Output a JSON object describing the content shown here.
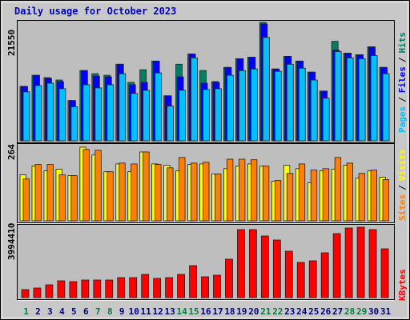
{
  "title": "Daily usage for October 2023",
  "label_separator": "/",
  "chart_data": [
    {
      "type": "bar",
      "ylim": [
        0,
        21550
      ],
      "yticks": [
        21550
      ],
      "series": [
        {
          "name": "Hits",
          "color": "#008060",
          "values": [
            9913,
            11925,
            11494,
            11063,
            7327,
            12787,
            12212,
            11925,
            13936,
            10632,
            12930,
            14511,
            8189,
            13936,
            15804,
            12787,
            10775,
            13361,
            14942,
            15229,
            21550,
            13074,
            15373,
            14511,
            12499,
            9051,
            18102,
            15947,
            15660,
            17097,
            13361
          ]
        },
        {
          "name": "Files",
          "color": "#0000ff",
          "values": [
            9913,
            11925,
            11350,
            10775,
            7327,
            12787,
            11781,
            11637,
            13936,
            10201,
            10632,
            14511,
            8189,
            11637,
            15804,
            10488,
            10632,
            13361,
            14942,
            15229,
            21263,
            13074,
            15373,
            14511,
            12499,
            9051,
            16522,
            15947,
            15660,
            17097,
            13361
          ]
        },
        {
          "name": "Pages",
          "color": "#00c0ff",
          "values": [
            8908,
            10057,
            10488,
            9482,
            6178,
            10201,
            9626,
            10201,
            12212,
            8620,
            9195,
            12356,
            6321,
            9195,
            15085,
            9339,
            9482,
            11925,
            12787,
            13074,
            18821,
            12643,
            13936,
            13218,
            11063,
            7758,
            16235,
            15085,
            14942,
            15516,
            12212
          ]
        }
      ]
    },
    {
      "type": "bar",
      "ylim": [
        0,
        264
      ],
      "yticks": [
        264
      ],
      "series": [
        {
          "name": "Visits",
          "color": "#ffff00",
          "values": [
            165,
            196,
            179,
            185,
            162,
            264,
            236,
            176,
            204,
            176,
            247,
            204,
            199,
            179,
            202,
            204,
            168,
            187,
            196,
            204,
            196,
            142,
            199,
            187,
            136,
            179,
            185,
            199,
            153,
            179,
            156
          ]
        },
        {
          "name": "Sites",
          "color": "#ff8000",
          "values": [
            150,
            202,
            202,
            165,
            162,
            256,
            253,
            176,
            207,
            204,
            247,
            202,
            190,
            227,
            207,
            210,
            168,
            221,
            221,
            219,
            196,
            145,
            170,
            204,
            182,
            187,
            227,
            207,
            170,
            182,
            148
          ]
        }
      ]
    },
    {
      "type": "bar",
      "ylim": [
        0,
        3994410
      ],
      "yticks": [
        3994410
      ],
      "categories": [
        "1",
        "2",
        "3",
        "4",
        "5",
        "6",
        "7",
        "8",
        "9",
        "10",
        "11",
        "12",
        "13",
        "14",
        "15",
        "16",
        "17",
        "18",
        "19",
        "20",
        "21",
        "22",
        "23",
        "24",
        "25",
        "26",
        "27",
        "28",
        "29",
        "30",
        "31"
      ],
      "category_colors": [
        "#008040",
        "#000080",
        "#000080",
        "#000080",
        "#000080",
        "#000080",
        "#008040",
        "#008040",
        "#000080",
        "#000080",
        "#000080",
        "#000080",
        "#000080",
        "#008040",
        "#008040",
        "#000080",
        "#000080",
        "#000080",
        "#000080",
        "#000080",
        "#008040",
        "#008040",
        "#000080",
        "#000080",
        "#000080",
        "#000080",
        "#000080",
        "#008040",
        "#008040",
        "#000080",
        "#000080"
      ],
      "series": [
        {
          "name": "KBytes",
          "color": "#ff0000",
          "values": [
            453910,
            544692,
            726256,
            953211,
            907820,
            998602,
            998602,
            998602,
            1134775,
            1134775,
            1316339,
            1089384,
            1134775,
            1316339,
            1815640,
            1180166,
            1270948,
            2178768,
            3858235,
            3858235,
            3495107,
            3268152,
            2632678,
            1997204,
            2087986,
            2541896,
            3631280,
            3949017,
            3994410,
            3858235,
            2768851
          ]
        }
      ]
    }
  ]
}
